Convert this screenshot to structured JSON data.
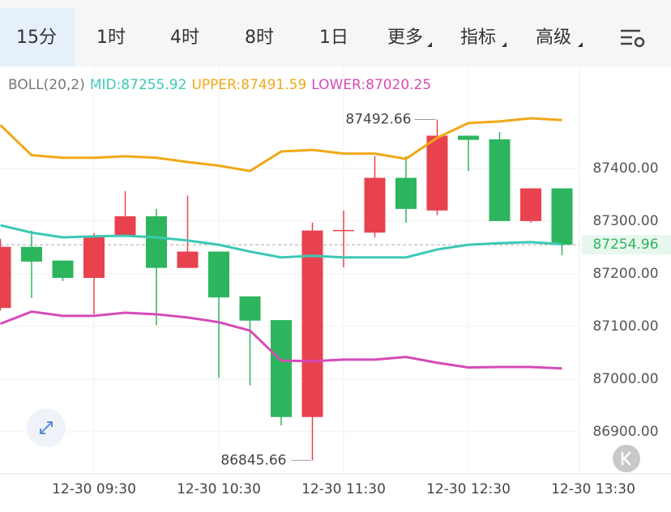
{
  "tabs": [
    "15分",
    "1时",
    "4时",
    "8时",
    "1日",
    "更多",
    "指标",
    "高级"
  ],
  "active_tab": 0,
  "chart_data": {
    "type": "candlestick",
    "indicator": "BOLL(20,2)",
    "legend": [
      "MID:87255.92",
      "UPPER:87491.59",
      "LOWER:87020.25"
    ],
    "ohlc": {
      "open": [
        87135,
        87251,
        87225,
        87192,
        87272,
        87309,
        87211,
        87242,
        87157,
        87112,
        86928,
        87282,
        87278,
        87382,
        87320,
        87462,
        87455,
        87300,
        87362
      ],
      "high": [
        87266,
        87282,
        87225,
        87277,
        87357,
        87323,
        87348,
        87242,
        87157,
        87112,
        87297,
        87320,
        87423,
        87423,
        87492.66,
        87462,
        87469,
        87362,
        87362
      ],
      "low": [
        87130,
        87154,
        87186,
        87123,
        87272,
        87102,
        87211,
        87002,
        86988,
        86912,
        86845.66,
        87212,
        87269,
        87297,
        87311,
        87395,
        87300,
        87297,
        87235
      ],
      "close": [
        87251,
        87223,
        87192,
        87272,
        87309,
        87211,
        87242,
        87155,
        87111,
        86928,
        87282,
        87283,
        87382,
        87323,
        87462,
        87454,
        87300,
        87362,
        87254.96
      ]
    },
    "up_color": "#e8424f",
    "down_color": "#2db55d",
    "series": [
      {
        "name": "MID",
        "color": "#3cc8b4",
        "values": [
          87292,
          87278,
          87269,
          87271,
          87272,
          87269,
          87263,
          87255,
          87242,
          87231,
          87234,
          87231,
          87231,
          87231,
          87246,
          87255,
          87258,
          87260,
          87255.92
        ]
      },
      {
        "name": "UPPER",
        "color": "#f0a818",
        "values": [
          87482,
          87425,
          87420,
          87420,
          87423,
          87420,
          87412,
          87405,
          87395,
          87432,
          87435,
          87428,
          87428,
          87418,
          87458,
          87486,
          87489,
          87495,
          87491.59
        ]
      },
      {
        "name": "LOWER",
        "color": "#d54bb8",
        "values": [
          87105,
          87128,
          87120,
          87120,
          87126,
          87123,
          87117,
          87108,
          87092,
          87035,
          87034,
          87037,
          87037,
          87042,
          87031,
          87022,
          87023,
          87023,
          87020.25
        ]
      }
    ],
    "ylim": [
      86820,
      87535
    ],
    "yticks": [
      {
        "value": 86900,
        "label": "86900.00"
      },
      {
        "value": 87000,
        "label": "87000.00"
      },
      {
        "value": 87100,
        "label": "87100.00"
      },
      {
        "value": 87200,
        "label": "87200.00"
      },
      {
        "value": 87300,
        "label": "87300.00"
      },
      {
        "value": 87400,
        "label": "87400.00"
      }
    ],
    "xticks": [
      {
        "value": 3,
        "label": "12-30 09:30"
      },
      {
        "value": 7,
        "label": "12-30 10:30"
      },
      {
        "value": 11,
        "label": "12-30 11:30"
      },
      {
        "value": 15,
        "label": "12-30 12:30"
      },
      {
        "value": 19,
        "label": "12-30 13:30"
      }
    ],
    "last_price": 87254.96,
    "grid": true
  }
}
